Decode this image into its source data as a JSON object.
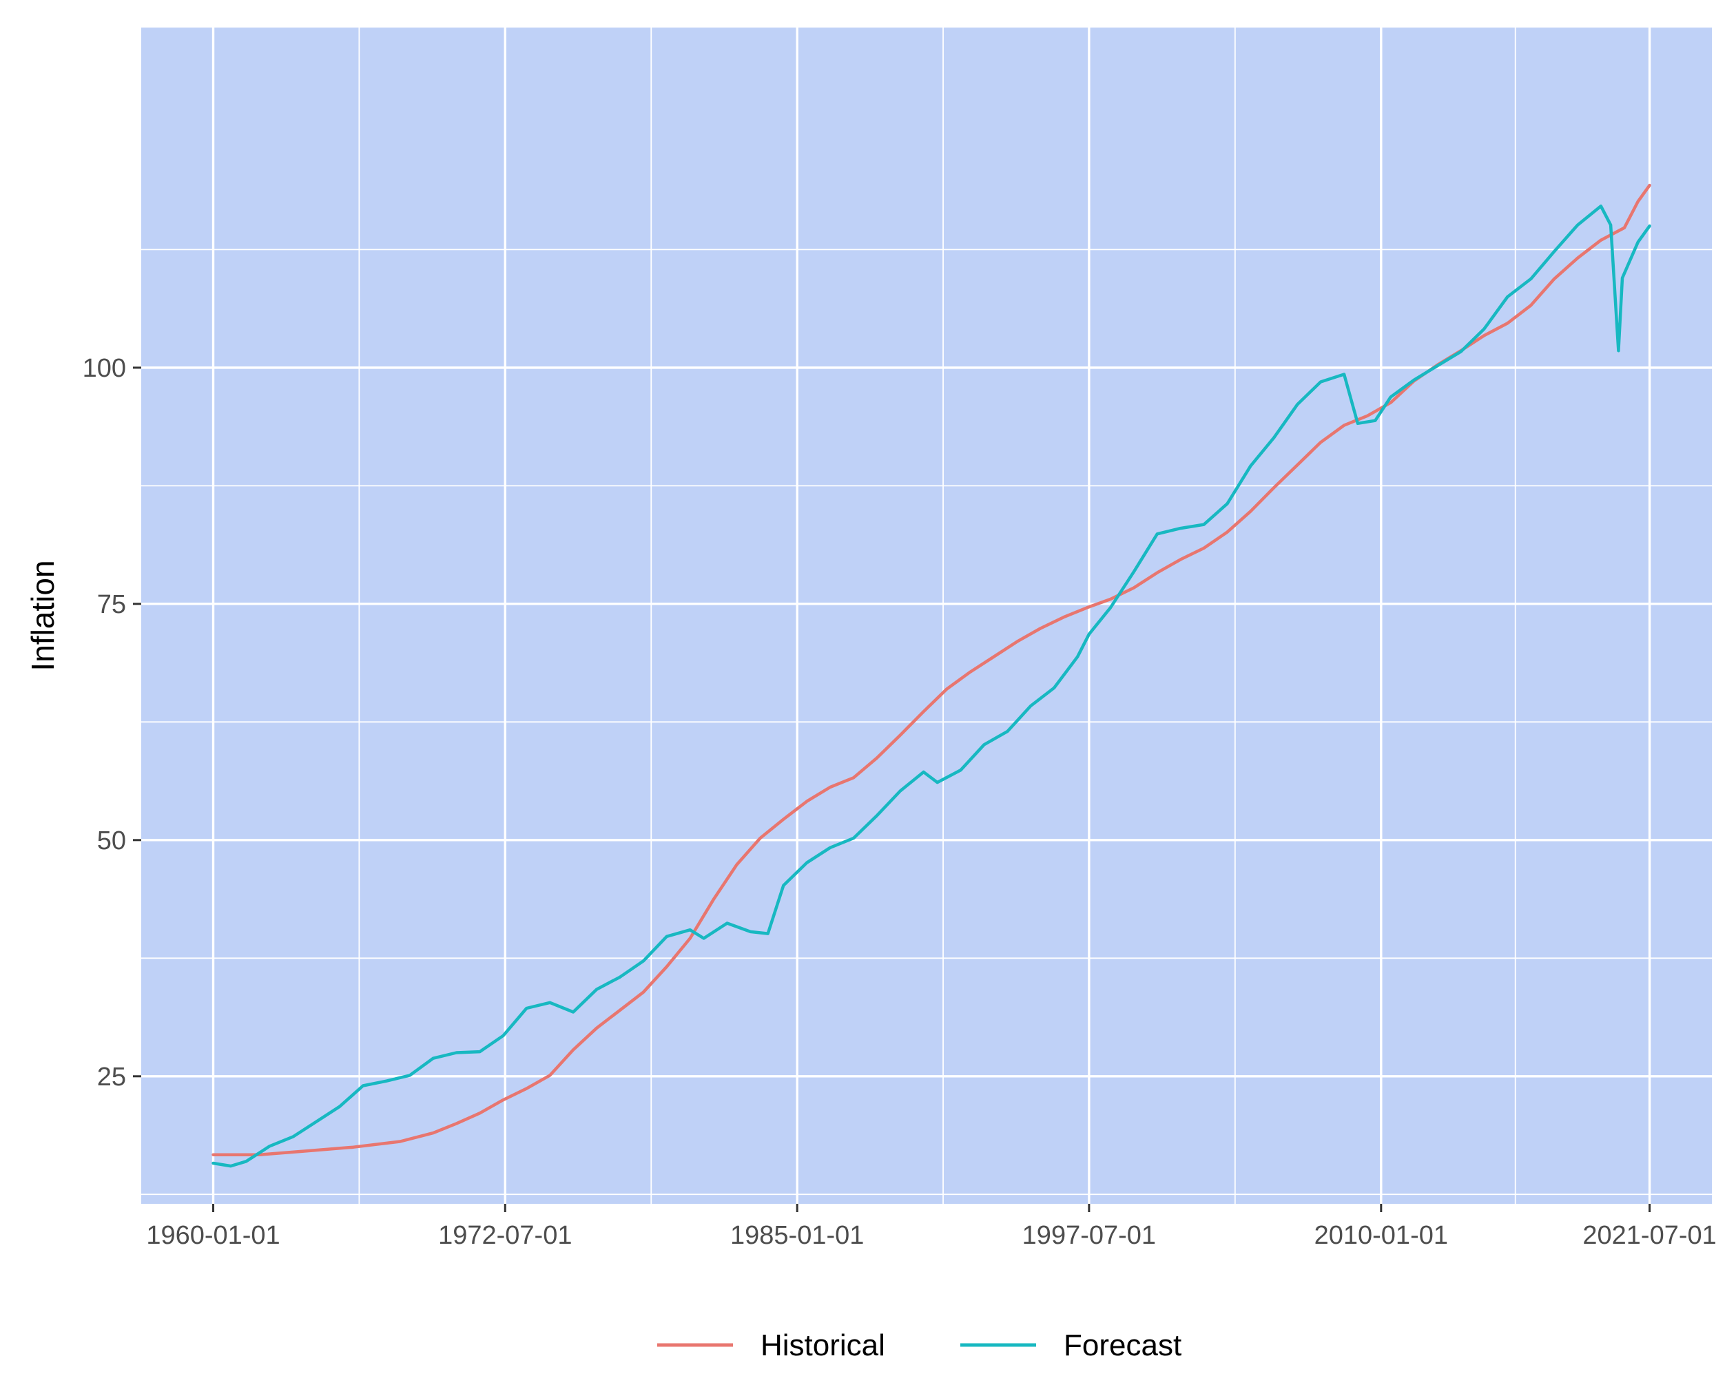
{
  "chart_data": {
    "type": "line",
    "title": "",
    "xlabel": "",
    "ylabel": "Inflation",
    "x_ticks": [
      "1960-01-01",
      "1972-07-01",
      "1985-01-01",
      "1997-07-01",
      "2010-01-01",
      "2021-07-01"
    ],
    "y_ticks": [
      25,
      50,
      75,
      100
    ],
    "xlim": [
      "1956-12-01",
      "2024-03-01"
    ],
    "ylim": [
      11.5,
      136
    ],
    "grid": true,
    "legend_position": "bottom",
    "colors": {
      "panel_background": "#bfd1f7",
      "grid": "#ffffff",
      "historical": "#e8766f",
      "forecast": "#17b8c1"
    },
    "series": [
      {
        "name": "Historical",
        "color": "#e8766f",
        "points": [
          [
            "1960-01-01",
            16.7
          ],
          [
            "1962-01-01",
            16.7
          ],
          [
            "1964-01-01",
            17.1
          ],
          [
            "1966-01-01",
            17.5
          ],
          [
            "1968-01-01",
            18.1
          ],
          [
            "1969-06-01",
            19.0
          ],
          [
            "1970-06-01",
            20.0
          ],
          [
            "1971-06-01",
            21.1
          ],
          [
            "1972-06-01",
            22.5
          ],
          [
            "1973-06-01",
            23.7
          ],
          [
            "1974-06-01",
            25.1
          ],
          [
            "1975-06-01",
            27.8
          ],
          [
            "1976-06-01",
            30.1
          ],
          [
            "1977-06-01",
            32.0
          ],
          [
            "1978-06-01",
            33.9
          ],
          [
            "1979-06-01",
            36.6
          ],
          [
            "1980-06-01",
            39.6
          ],
          [
            "1981-06-01",
            43.7
          ],
          [
            "1982-06-01",
            47.4
          ],
          [
            "1983-06-01",
            50.2
          ],
          [
            "1984-06-01",
            52.2
          ],
          [
            "1985-06-01",
            54.1
          ],
          [
            "1986-06-01",
            55.6
          ],
          [
            "1987-06-01",
            56.6
          ],
          [
            "1988-06-01",
            58.7
          ],
          [
            "1989-06-01",
            61.1
          ],
          [
            "1990-06-01",
            63.6
          ],
          [
            "1991-06-01",
            66.0
          ],
          [
            "1992-06-01",
            67.8
          ],
          [
            "1993-06-01",
            69.4
          ],
          [
            "1994-06-01",
            71.0
          ],
          [
            "1995-06-01",
            72.4
          ],
          [
            "1996-06-01",
            73.6
          ],
          [
            "1997-06-01",
            74.6
          ],
          [
            "1998-06-01",
            75.5
          ],
          [
            "1999-06-01",
            76.7
          ],
          [
            "2000-06-01",
            78.3
          ],
          [
            "2001-06-01",
            79.7
          ],
          [
            "2002-06-01",
            80.9
          ],
          [
            "2003-06-01",
            82.6
          ],
          [
            "2004-06-01",
            84.8
          ],
          [
            "2005-06-01",
            87.3
          ],
          [
            "2006-06-01",
            89.7
          ],
          [
            "2007-06-01",
            92.1
          ],
          [
            "2008-06-01",
            93.9
          ],
          [
            "2009-06-01",
            94.9
          ],
          [
            "2010-06-01",
            96.3
          ],
          [
            "2011-06-01",
            98.6
          ],
          [
            "2012-06-01",
            100.3
          ],
          [
            "2013-06-01",
            101.8
          ],
          [
            "2014-06-01",
            103.4
          ],
          [
            "2015-06-01",
            104.7
          ],
          [
            "2016-06-01",
            106.6
          ],
          [
            "2017-06-01",
            109.4
          ],
          [
            "2018-06-01",
            111.6
          ],
          [
            "2019-06-01",
            113.5
          ],
          [
            "2020-06-01",
            114.8
          ],
          [
            "2021-01-01",
            117.6
          ],
          [
            "2021-07-01",
            119.3
          ]
        ]
      },
      {
        "name": "Forecast",
        "color": "#17b8c1",
        "points": [
          [
            "1960-01-01",
            15.8
          ],
          [
            "1960-10-01",
            15.5
          ],
          [
            "1961-06-01",
            16.0
          ],
          [
            "1962-06-01",
            17.6
          ],
          [
            "1963-06-01",
            18.6
          ],
          [
            "1964-06-01",
            20.2
          ],
          [
            "1965-06-01",
            21.8
          ],
          [
            "1966-06-01",
            24.0
          ],
          [
            "1967-06-01",
            24.5
          ],
          [
            "1968-06-01",
            25.1
          ],
          [
            "1969-06-01",
            26.9
          ],
          [
            "1970-06-01",
            27.5
          ],
          [
            "1971-06-01",
            27.6
          ],
          [
            "1972-06-01",
            29.3
          ],
          [
            "1973-06-01",
            32.2
          ],
          [
            "1974-06-01",
            32.8
          ],
          [
            "1975-06-01",
            31.8
          ],
          [
            "1976-06-01",
            34.2
          ],
          [
            "1977-06-01",
            35.5
          ],
          [
            "1978-06-01",
            37.2
          ],
          [
            "1979-06-01",
            39.8
          ],
          [
            "1980-06-01",
            40.5
          ],
          [
            "1981-01-01",
            39.6
          ],
          [
            "1982-01-01",
            41.2
          ],
          [
            "1983-01-01",
            40.3
          ],
          [
            "1983-10-01",
            40.1
          ],
          [
            "1984-06-01",
            45.2
          ],
          [
            "1985-06-01",
            47.6
          ],
          [
            "1986-06-01",
            49.2
          ],
          [
            "1987-06-01",
            50.2
          ],
          [
            "1988-06-01",
            52.6
          ],
          [
            "1989-06-01",
            55.2
          ],
          [
            "1990-06-01",
            57.2
          ],
          [
            "1991-01-01",
            56.1
          ],
          [
            "1992-01-01",
            57.4
          ],
          [
            "1993-01-01",
            60.1
          ],
          [
            "1994-01-01",
            61.5
          ],
          [
            "1995-01-01",
            64.2
          ],
          [
            "1996-01-01",
            66.1
          ],
          [
            "1997-01-01",
            69.4
          ],
          [
            "1997-07-01",
            71.8
          ],
          [
            "1998-06-01",
            74.6
          ],
          [
            "1999-06-01",
            78.4
          ],
          [
            "2000-06-01",
            82.4
          ],
          [
            "2001-06-01",
            83.0
          ],
          [
            "2002-06-01",
            83.4
          ],
          [
            "2003-06-01",
            85.6
          ],
          [
            "2004-06-01",
            89.6
          ],
          [
            "2005-06-01",
            92.6
          ],
          [
            "2006-06-01",
            96.1
          ],
          [
            "2007-06-01",
            98.5
          ],
          [
            "2008-06-01",
            99.3
          ],
          [
            "2009-01-01",
            94.1
          ],
          [
            "2009-10-01",
            94.4
          ],
          [
            "2010-06-01",
            96.9
          ],
          [
            "2011-06-01",
            98.7
          ],
          [
            "2012-06-01",
            100.2
          ],
          [
            "2013-06-01",
            101.7
          ],
          [
            "2014-06-01",
            104.1
          ],
          [
            "2015-06-01",
            107.5
          ],
          [
            "2016-06-01",
            109.4
          ],
          [
            "2017-06-01",
            112.3
          ],
          [
            "2018-06-01",
            115.1
          ],
          [
            "2019-06-01",
            117.1
          ],
          [
            "2019-11-01",
            115.1
          ],
          [
            "2020-03-01",
            101.8
          ],
          [
            "2020-05-01",
            109.5
          ],
          [
            "2021-01-01",
            113.3
          ],
          [
            "2021-07-01",
            115.0
          ]
        ]
      }
    ]
  }
}
